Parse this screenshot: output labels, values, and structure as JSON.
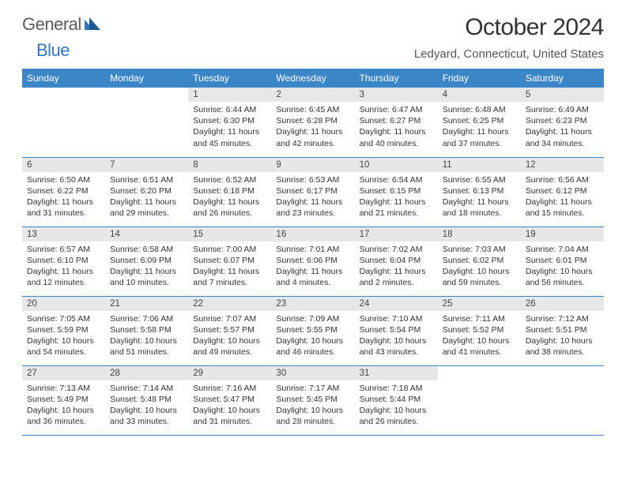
{
  "logo": {
    "word1": "General",
    "word2": "Blue"
  },
  "title": "October 2024",
  "location": "Ledyard, Connecticut, United States",
  "colors": {
    "header_bg": "#3b86c6",
    "header_text": "#ffffff",
    "daynum_bg": "#e7e7e7",
    "cell_border": "#3b86c6",
    "logo_gray": "#5a5a5a",
    "logo_blue": "#2f76ba"
  },
  "dayHeaders": [
    "Sunday",
    "Monday",
    "Tuesday",
    "Wednesday",
    "Thursday",
    "Friday",
    "Saturday"
  ],
  "weeks": [
    [
      {
        "n": "",
        "rise": "",
        "set": "",
        "dl1": "",
        "dl2": ""
      },
      {
        "n": "",
        "rise": "",
        "set": "",
        "dl1": "",
        "dl2": ""
      },
      {
        "n": "1",
        "rise": "Sunrise: 6:44 AM",
        "set": "Sunset: 6:30 PM",
        "dl1": "Daylight: 11 hours",
        "dl2": "and 45 minutes."
      },
      {
        "n": "2",
        "rise": "Sunrise: 6:45 AM",
        "set": "Sunset: 6:28 PM",
        "dl1": "Daylight: 11 hours",
        "dl2": "and 42 minutes."
      },
      {
        "n": "3",
        "rise": "Sunrise: 6:47 AM",
        "set": "Sunset: 6:27 PM",
        "dl1": "Daylight: 11 hours",
        "dl2": "and 40 minutes."
      },
      {
        "n": "4",
        "rise": "Sunrise: 6:48 AM",
        "set": "Sunset: 6:25 PM",
        "dl1": "Daylight: 11 hours",
        "dl2": "and 37 minutes."
      },
      {
        "n": "5",
        "rise": "Sunrise: 6:49 AM",
        "set": "Sunset: 6:23 PM",
        "dl1": "Daylight: 11 hours",
        "dl2": "and 34 minutes."
      }
    ],
    [
      {
        "n": "6",
        "rise": "Sunrise: 6:50 AM",
        "set": "Sunset: 6:22 PM",
        "dl1": "Daylight: 11 hours",
        "dl2": "and 31 minutes."
      },
      {
        "n": "7",
        "rise": "Sunrise: 6:51 AM",
        "set": "Sunset: 6:20 PM",
        "dl1": "Daylight: 11 hours",
        "dl2": "and 29 minutes."
      },
      {
        "n": "8",
        "rise": "Sunrise: 6:52 AM",
        "set": "Sunset: 6:18 PM",
        "dl1": "Daylight: 11 hours",
        "dl2": "and 26 minutes."
      },
      {
        "n": "9",
        "rise": "Sunrise: 6:53 AM",
        "set": "Sunset: 6:17 PM",
        "dl1": "Daylight: 11 hours",
        "dl2": "and 23 minutes."
      },
      {
        "n": "10",
        "rise": "Sunrise: 6:54 AM",
        "set": "Sunset: 6:15 PM",
        "dl1": "Daylight: 11 hours",
        "dl2": "and 21 minutes."
      },
      {
        "n": "11",
        "rise": "Sunrise: 6:55 AM",
        "set": "Sunset: 6:13 PM",
        "dl1": "Daylight: 11 hours",
        "dl2": "and 18 minutes."
      },
      {
        "n": "12",
        "rise": "Sunrise: 6:56 AM",
        "set": "Sunset: 6:12 PM",
        "dl1": "Daylight: 11 hours",
        "dl2": "and 15 minutes."
      }
    ],
    [
      {
        "n": "13",
        "rise": "Sunrise: 6:57 AM",
        "set": "Sunset: 6:10 PM",
        "dl1": "Daylight: 11 hours",
        "dl2": "and 12 minutes."
      },
      {
        "n": "14",
        "rise": "Sunrise: 6:58 AM",
        "set": "Sunset: 6:09 PM",
        "dl1": "Daylight: 11 hours",
        "dl2": "and 10 minutes."
      },
      {
        "n": "15",
        "rise": "Sunrise: 7:00 AM",
        "set": "Sunset: 6:07 PM",
        "dl1": "Daylight: 11 hours",
        "dl2": "and 7 minutes."
      },
      {
        "n": "16",
        "rise": "Sunrise: 7:01 AM",
        "set": "Sunset: 6:06 PM",
        "dl1": "Daylight: 11 hours",
        "dl2": "and 4 minutes."
      },
      {
        "n": "17",
        "rise": "Sunrise: 7:02 AM",
        "set": "Sunset: 6:04 PM",
        "dl1": "Daylight: 11 hours",
        "dl2": "and 2 minutes."
      },
      {
        "n": "18",
        "rise": "Sunrise: 7:03 AM",
        "set": "Sunset: 6:02 PM",
        "dl1": "Daylight: 10 hours",
        "dl2": "and 59 minutes."
      },
      {
        "n": "19",
        "rise": "Sunrise: 7:04 AM",
        "set": "Sunset: 6:01 PM",
        "dl1": "Daylight: 10 hours",
        "dl2": "and 56 minutes."
      }
    ],
    [
      {
        "n": "20",
        "rise": "Sunrise: 7:05 AM",
        "set": "Sunset: 5:59 PM",
        "dl1": "Daylight: 10 hours",
        "dl2": "and 54 minutes."
      },
      {
        "n": "21",
        "rise": "Sunrise: 7:06 AM",
        "set": "Sunset: 5:58 PM",
        "dl1": "Daylight: 10 hours",
        "dl2": "and 51 minutes."
      },
      {
        "n": "22",
        "rise": "Sunrise: 7:07 AM",
        "set": "Sunset: 5:57 PM",
        "dl1": "Daylight: 10 hours",
        "dl2": "and 49 minutes."
      },
      {
        "n": "23",
        "rise": "Sunrise: 7:09 AM",
        "set": "Sunset: 5:55 PM",
        "dl1": "Daylight: 10 hours",
        "dl2": "and 46 minutes."
      },
      {
        "n": "24",
        "rise": "Sunrise: 7:10 AM",
        "set": "Sunset: 5:54 PM",
        "dl1": "Daylight: 10 hours",
        "dl2": "and 43 minutes."
      },
      {
        "n": "25",
        "rise": "Sunrise: 7:11 AM",
        "set": "Sunset: 5:52 PM",
        "dl1": "Daylight: 10 hours",
        "dl2": "and 41 minutes."
      },
      {
        "n": "26",
        "rise": "Sunrise: 7:12 AM",
        "set": "Sunset: 5:51 PM",
        "dl1": "Daylight: 10 hours",
        "dl2": "and 38 minutes."
      }
    ],
    [
      {
        "n": "27",
        "rise": "Sunrise: 7:13 AM",
        "set": "Sunset: 5:49 PM",
        "dl1": "Daylight: 10 hours",
        "dl2": "and 36 minutes."
      },
      {
        "n": "28",
        "rise": "Sunrise: 7:14 AM",
        "set": "Sunset: 5:48 PM",
        "dl1": "Daylight: 10 hours",
        "dl2": "and 33 minutes."
      },
      {
        "n": "29",
        "rise": "Sunrise: 7:16 AM",
        "set": "Sunset: 5:47 PM",
        "dl1": "Daylight: 10 hours",
        "dl2": "and 31 minutes."
      },
      {
        "n": "30",
        "rise": "Sunrise: 7:17 AM",
        "set": "Sunset: 5:45 PM",
        "dl1": "Daylight: 10 hours",
        "dl2": "and 28 minutes."
      },
      {
        "n": "31",
        "rise": "Sunrise: 7:18 AM",
        "set": "Sunset: 5:44 PM",
        "dl1": "Daylight: 10 hours",
        "dl2": "and 26 minutes."
      },
      {
        "n": "",
        "rise": "",
        "set": "",
        "dl1": "",
        "dl2": ""
      },
      {
        "n": "",
        "rise": "",
        "set": "",
        "dl1": "",
        "dl2": ""
      }
    ]
  ]
}
